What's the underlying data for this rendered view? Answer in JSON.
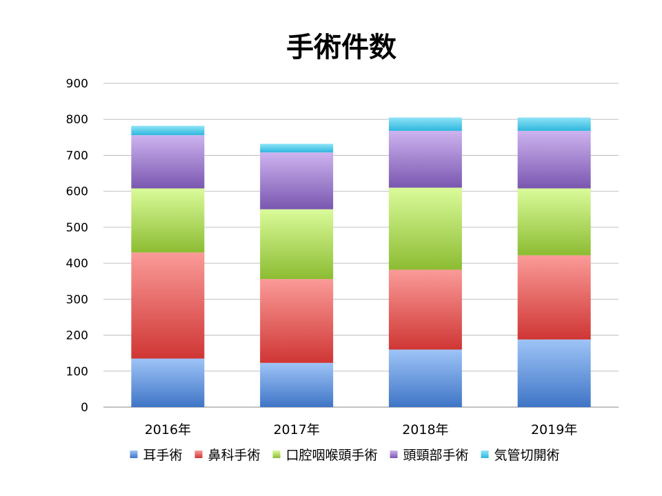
{
  "chart_data": {
    "type": "bar",
    "stacked": true,
    "title": "手術件数",
    "xlabel": "",
    "ylabel": "",
    "ylim": [
      0,
      900
    ],
    "yticks": [
      0,
      100,
      200,
      300,
      400,
      500,
      600,
      700,
      800,
      900
    ],
    "grid": true,
    "legend_position": "bottom",
    "categories": [
      "2016年",
      "2017年",
      "2018年",
      "2019年"
    ],
    "series": [
      {
        "name": "耳手術",
        "values": [
          135,
          123,
          160,
          188
        ],
        "color": "#5b8fd8",
        "color_light": "#9ec4f7",
        "color_dark": "#3f75c6"
      },
      {
        "name": "鼻科手術",
        "values": [
          295,
          233,
          222,
          234
        ],
        "color": "#e25a58",
        "color_light": "#fa9b98",
        "color_dark": "#cf3634"
      },
      {
        "name": "口腔咽喉頭手術",
        "values": [
          178,
          194,
          228,
          186
        ],
        "color": "#a6d04c",
        "color_light": "#dafb9a",
        "color_dark": "#8cbc32"
      },
      {
        "name": "頭頸部手術",
        "values": [
          148,
          158,
          158,
          160
        ],
        "color": "#9a78c8",
        "color_light": "#cdb3ef",
        "color_dark": "#7a57b0"
      },
      {
        "name": "気管切開術",
        "values": [
          26,
          24,
          37,
          37
        ],
        "color": "#48c8e8",
        "color_light": "#8ee4f8",
        "color_dark": "#2fb6dc"
      }
    ]
  }
}
